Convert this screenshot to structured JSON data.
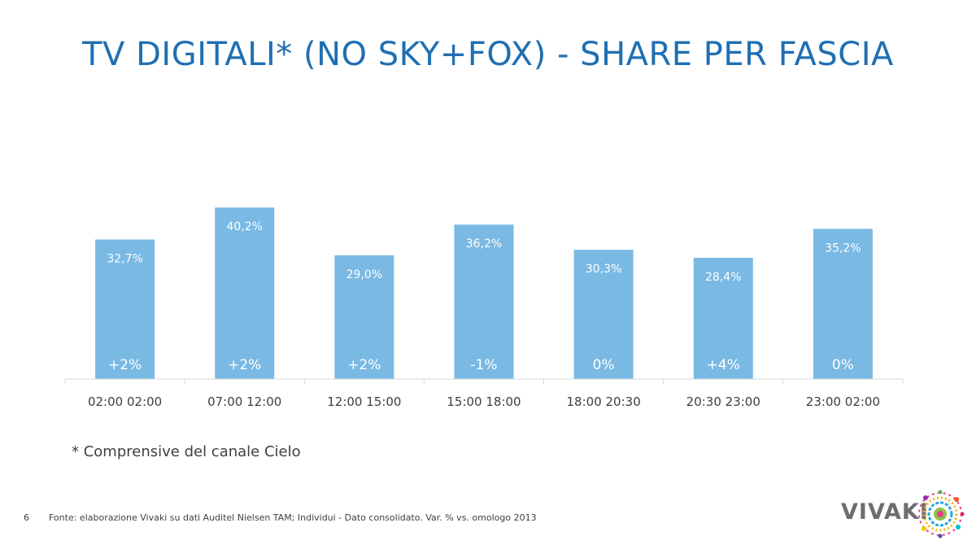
{
  "slide": {
    "title": "TV DIGITALI* (NO SKY+FOX) - SHARE PER FASCIA",
    "note": "* Comprensive del canale Cielo",
    "page_number": "6",
    "source": "Fonte: elaborazione Vivaki su dati Auditel Nielsen TAM; Individui - Dato consolidato. Var. % vs. omologo 2013",
    "logo_text": "VIVAKI"
  },
  "colors": {
    "title": "#1f6fb2",
    "bar": "#7ab9e3",
    "bar_label": "#ffffff",
    "axis": "#d9d9d9",
    "tick_label": "#404040"
  },
  "chart_data": {
    "type": "bar",
    "categories": [
      "02:00 02:00",
      "07:00 12:00",
      "12:00 15:00",
      "15:00 18:00",
      "18:00 20:30",
      "20:30 23:00",
      "23:00 02:00"
    ],
    "values": [
      32.7,
      40.2,
      29.0,
      36.2,
      30.3,
      28.4,
      35.2
    ],
    "value_labels": [
      "32,7%",
      "40,2%",
      "29,0%",
      "36,2%",
      "30,3%",
      "28,4%",
      "35,2%"
    ],
    "variation_labels": [
      "+2%",
      "+2%",
      "+2%",
      "-1%",
      "0%",
      "+4%",
      "0%"
    ],
    "ylim": [
      0,
      45
    ],
    "grid": false,
    "legend": "none"
  }
}
